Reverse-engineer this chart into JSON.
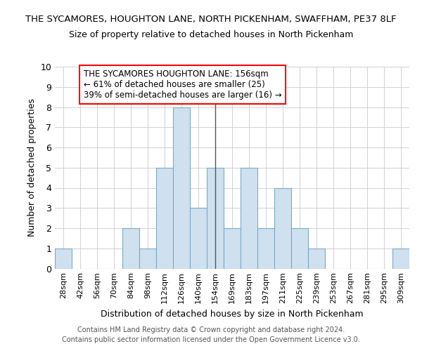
{
  "title1": "THE SYCAMORES, HOUGHTON LANE, NORTH PICKENHAM, SWAFFHAM, PE37 8LF",
  "title2": "Size of property relative to detached houses in North Pickenham",
  "xlabel": "Distribution of detached houses by size in North Pickenham",
  "ylabel": "Number of detached properties",
  "categories": [
    "28sqm",
    "42sqm",
    "56sqm",
    "70sqm",
    "84sqm",
    "98sqm",
    "112sqm",
    "126sqm",
    "140sqm",
    "154sqm",
    "169sqm",
    "183sqm",
    "197sqm",
    "211sqm",
    "225sqm",
    "239sqm",
    "253sqm",
    "267sqm",
    "281sqm",
    "295sqm",
    "309sqm"
  ],
  "values": [
    1,
    0,
    0,
    0,
    2,
    1,
    5,
    8,
    3,
    5,
    2,
    5,
    2,
    4,
    2,
    1,
    0,
    0,
    0,
    0,
    1
  ],
  "bar_color": "#cfe0ef",
  "bar_edge_color": "#7aaac8",
  "highlight_index": 9,
  "highlight_line_color": "#555555",
  "annotation_text": "THE SYCAMORES HOUGHTON LANE: 156sqm\n← 61% of detached houses are smaller (25)\n39% of semi-detached houses are larger (16) →",
  "annotation_box_color": "white",
  "annotation_box_edge_color": "red",
  "ylim": [
    0,
    10
  ],
  "yticks": [
    0,
    1,
    2,
    3,
    4,
    5,
    6,
    7,
    8,
    9,
    10
  ],
  "footer1": "Contains HM Land Registry data © Crown copyright and database right 2024.",
  "footer2": "Contains public sector information licensed under the Open Government Licence v3.0.",
  "bg_color": "white",
  "grid_color": "#d0d0d8"
}
